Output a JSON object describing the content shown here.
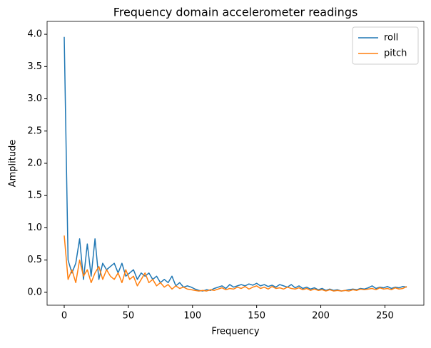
{
  "chart_data": {
    "type": "line",
    "title": "Frequency domain accelerometer readings",
    "x_label": "Frequency",
    "y_label": "Amplitude",
    "x": [
      0,
      3,
      6,
      9,
      12,
      15,
      18,
      21,
      24,
      27,
      30,
      33,
      36,
      39,
      42,
      45,
      48,
      51,
      54,
      57,
      60,
      63,
      66,
      69,
      72,
      75,
      78,
      81,
      84,
      87,
      90,
      93,
      96,
      99,
      102,
      105,
      108,
      111,
      114,
      117,
      120,
      123,
      126,
      129,
      132,
      135,
      138,
      141,
      144,
      147,
      150,
      153,
      156,
      159,
      162,
      165,
      168,
      171,
      174,
      177,
      180,
      183,
      186,
      189,
      192,
      195,
      198,
      201,
      204,
      207,
      210,
      213,
      216,
      219,
      222,
      225,
      228,
      231,
      234,
      237,
      240,
      243,
      246,
      249,
      252,
      255,
      258,
      261,
      264,
      267
    ],
    "series": [
      {
        "name": "roll",
        "color": "#1f77b4",
        "values": [
          3.96,
          0.5,
          0.3,
          0.45,
          0.83,
          0.2,
          0.75,
          0.25,
          0.83,
          0.2,
          0.45,
          0.35,
          0.4,
          0.45,
          0.3,
          0.45,
          0.25,
          0.3,
          0.35,
          0.2,
          0.3,
          0.25,
          0.3,
          0.2,
          0.25,
          0.15,
          0.2,
          0.15,
          0.25,
          0.1,
          0.15,
          0.08,
          0.1,
          0.08,
          0.05,
          0.03,
          0.02,
          0.04,
          0.03,
          0.06,
          0.08,
          0.1,
          0.06,
          0.12,
          0.08,
          0.1,
          0.12,
          0.1,
          0.13,
          0.11,
          0.14,
          0.1,
          0.12,
          0.09,
          0.11,
          0.08,
          0.12,
          0.1,
          0.08,
          0.12,
          0.07,
          0.1,
          0.06,
          0.08,
          0.05,
          0.07,
          0.04,
          0.06,
          0.03,
          0.05,
          0.03,
          0.04,
          0.02,
          0.03,
          0.04,
          0.05,
          0.04,
          0.06,
          0.05,
          0.07,
          0.1,
          0.06,
          0.08,
          0.07,
          0.09,
          0.06,
          0.08,
          0.07,
          0.09,
          0.08
        ]
      },
      {
        "name": "pitch",
        "color": "#ff7f0e",
        "values": [
          0.88,
          0.2,
          0.35,
          0.15,
          0.5,
          0.25,
          0.35,
          0.15,
          0.3,
          0.4,
          0.2,
          0.35,
          0.25,
          0.2,
          0.3,
          0.15,
          0.35,
          0.2,
          0.25,
          0.1,
          0.2,
          0.3,
          0.15,
          0.2,
          0.1,
          0.15,
          0.08,
          0.12,
          0.05,
          0.1,
          0.06,
          0.08,
          0.05,
          0.04,
          0.03,
          0.02,
          0.03,
          0.02,
          0.04,
          0.03,
          0.05,
          0.07,
          0.04,
          0.06,
          0.05,
          0.08,
          0.06,
          0.09,
          0.05,
          0.08,
          0.1,
          0.06,
          0.08,
          0.05,
          0.09,
          0.06,
          0.07,
          0.05,
          0.08,
          0.06,
          0.05,
          0.07,
          0.04,
          0.06,
          0.03,
          0.05,
          0.03,
          0.04,
          0.02,
          0.04,
          0.02,
          0.03,
          0.02,
          0.03,
          0.02,
          0.04,
          0.03,
          0.05,
          0.04,
          0.05,
          0.06,
          0.04,
          0.07,
          0.05,
          0.06,
          0.04,
          0.07,
          0.05,
          0.06,
          0.09
        ]
      }
    ],
    "xlim": [
      -13.35,
      280.35
    ],
    "ylim": [
      -0.2,
      4.2
    ],
    "xticks": [
      0,
      50,
      100,
      150,
      200,
      250
    ],
    "yticks": [
      {
        "value": 0,
        "label": "0.0"
      },
      0.5,
      {
        "value": 1,
        "label": "1.0"
      },
      1.5,
      {
        "value": 2,
        "label": "2.0"
      },
      2.5,
      {
        "value": 3,
        "label": "3.0"
      },
      3.5,
      {
        "value": 4,
        "label": "4.0"
      }
    ],
    "legend": "upper right",
    "grid": false
  }
}
